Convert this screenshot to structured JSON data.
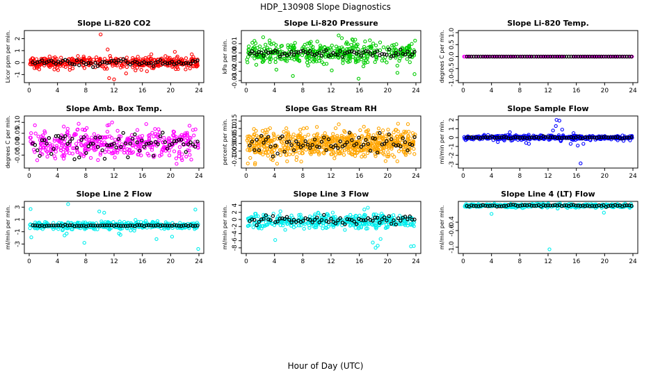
{
  "figure": {
    "title": "HDP_130908  Slope Diagnostics",
    "xlabel": "Hour of Day (UTC)"
  },
  "colors": {
    "red": "#ff0000",
    "green": "#00cc00",
    "magenta": "#ff00ff",
    "orange": "#ffa500",
    "blue": "#0000ff",
    "cyan": "#00eeee",
    "black": "#000000"
  },
  "chart_data": [
    {
      "type": "scatter",
      "title": "Slope Li-820 CO2",
      "ylabel": "Licor ppm per min.",
      "xlim": [
        0,
        24
      ],
      "ylim": [
        -1.5,
        2.5
      ],
      "xticks": [
        0,
        4,
        8,
        12,
        16,
        20,
        24
      ],
      "yticks": [
        -1,
        0,
        1,
        2
      ],
      "color": "red",
      "noise": {
        "mean": 0.0,
        "sd": 0.25,
        "n": 420,
        "min": -1.5,
        "max": 2.4
      },
      "outliers": [
        [
          10.1,
          2.35
        ],
        [
          11.1,
          1.1
        ],
        [
          11.3,
          -1.3
        ],
        [
          12.0,
          -1.4
        ],
        [
          13.7,
          -0.9
        ],
        [
          20.6,
          0.9
        ]
      ],
      "black_mean": 0.0,
      "black_sd": 0.12
    },
    {
      "type": "scatter",
      "title": "Slope Li-820 Pressure",
      "ylabel": "kPa per min.",
      "xlim": [
        0,
        24
      ],
      "ylim": [
        -0.03,
        0.022
      ],
      "xticks": [
        0,
        4,
        8,
        12,
        16,
        20,
        24
      ],
      "yticks": [
        -0.03,
        -0.02,
        -0.01,
        0.0,
        0.01
      ],
      "ytick_labels": [
        "-0.03",
        "-0.02",
        "-0.01",
        "0.00",
        "0.01"
      ],
      "color": "green",
      "noise": {
        "mean": 0.0,
        "sd": 0.006,
        "n": 420,
        "min": -0.03,
        "max": 0.02
      },
      "outliers": [
        [
          6.6,
          -0.025
        ],
        [
          12.1,
          -0.019
        ],
        [
          15.9,
          -0.028
        ],
        [
          23.8,
          -0.023
        ],
        [
          2.4,
          0.017
        ]
      ],
      "black_mean": 0.0,
      "black_sd": 0.0025
    },
    {
      "type": "scatter",
      "title": "Slope Li-820 Temp.",
      "ylabel": "degrees C per min.",
      "xlim": [
        0,
        24
      ],
      "ylim": [
        -1.0,
        1.0
      ],
      "xticks": [
        0,
        4,
        8,
        12,
        16,
        20,
        24
      ],
      "yticks": [
        -1.0,
        -0.5,
        0.0,
        0.5,
        1.0
      ],
      "ytick_labels": [
        "-1.0",
        "-0.5",
        "0.0",
        "0.5",
        "1.0"
      ],
      "color": "magenta",
      "noise": {
        "mean": 0.0,
        "sd": 0.0,
        "n": 160,
        "min": 0.0,
        "max": 0.0
      },
      "outliers": [],
      "black_mean": 0.0,
      "black_sd": 0.0
    },
    {
      "type": "scatter",
      "title": "Slope Amb. Box Temp.",
      "ylabel": "degrees C per min.",
      "xlim": [
        0,
        24
      ],
      "ylim": [
        -0.1,
        0.12
      ],
      "xticks": [
        0,
        4,
        8,
        12,
        16,
        20,
        24
      ],
      "yticks": [
        -0.05,
        0.0,
        0.05,
        0.1
      ],
      "ytick_labels": [
        "-0.05",
        "0.00",
        "0.05",
        "0.10"
      ],
      "color": "magenta",
      "noise": {
        "mean": 0.0,
        "sd": 0.035,
        "n": 420,
        "min": -0.09,
        "max": 0.1
      },
      "outliers": [],
      "black_mean": 0.0,
      "black_sd": 0.03
    },
    {
      "type": "scatter",
      "title": "Slope Gas Stream RH",
      "ylabel": "percent per min.",
      "xlim": [
        0,
        24
      ],
      "ylim": [
        -0.15,
        0.17
      ],
      "xticks": [
        0,
        4,
        8,
        12,
        16,
        20,
        24
      ],
      "yticks": [
        -0.1,
        -0.05,
        0.0,
        0.05,
        0.1,
        0.15
      ],
      "ytick_labels": [
        "-0.10",
        "-0.05",
        "0.00",
        "0.05",
        "0.10",
        "0.15"
      ],
      "color": "orange",
      "noise": {
        "mean": 0.0,
        "sd": 0.045,
        "n": 700,
        "min": -0.14,
        "max": 0.16
      },
      "outliers": [],
      "black_mean": 0.0,
      "black_sd": 0.035
    },
    {
      "type": "scatter",
      "title": "Slope Sample Flow",
      "ylabel": "ml/min per min.",
      "xlim": [
        0,
        24
      ],
      "ylim": [
        -3.2,
        2.2
      ],
      "xticks": [
        0,
        4,
        8,
        12,
        16,
        20,
        24
      ],
      "yticks": [
        -3,
        -2,
        -1,
        0,
        1,
        2
      ],
      "color": "blue",
      "noise": {
        "mean": 0.0,
        "sd": 0.12,
        "n": 420,
        "min": -0.8,
        "max": 0.8
      },
      "outliers": [
        [
          13.2,
          2.0
        ],
        [
          13.6,
          1.9
        ],
        [
          13.1,
          1.3
        ],
        [
          14.0,
          0.9
        ],
        [
          15.6,
          0.5
        ],
        [
          16.2,
          -0.9
        ],
        [
          16.6,
          -2.9
        ],
        [
          4.9,
          -0.5
        ],
        [
          8.9,
          -0.6
        ],
        [
          9.3,
          -0.7
        ],
        [
          15.2,
          -0.7
        ],
        [
          17.0,
          -0.7
        ],
        [
          12.7,
          0.8
        ],
        [
          13.8,
          -0.4
        ],
        [
          6.6,
          0.6
        ]
      ],
      "black_mean": 0.0,
      "black_sd": 0.05
    },
    {
      "type": "scatter",
      "title": "Slope Line 2 Flow",
      "ylabel": "ml/min per min.",
      "xlim": [
        0,
        24
      ],
      "ylim": [
        -4.2,
        3.6
      ],
      "xticks": [
        0,
        4,
        8,
        12,
        16,
        20,
        24
      ],
      "yticks": [
        -3,
        -1,
        1,
        3
      ],
      "color": "cyan",
      "noise": {
        "mean": 0.0,
        "sd": 0.3,
        "n": 420,
        "min": -1.5,
        "max": 1.5
      },
      "outliers": [
        [
          0.2,
          2.7
        ],
        [
          0.3,
          -1.9
        ],
        [
          5.5,
          3.5
        ],
        [
          5.3,
          -1.3
        ],
        [
          5.0,
          -1.6
        ],
        [
          7.8,
          -2.8
        ],
        [
          12.9,
          -1.5
        ],
        [
          12.7,
          -1.3
        ],
        [
          18.0,
          -2.2
        ],
        [
          20.2,
          -1.8
        ],
        [
          23.5,
          2.6
        ],
        [
          23.9,
          -3.8
        ],
        [
          9.9,
          2.3
        ],
        [
          10.6,
          2.1
        ]
      ],
      "black_mean": 0.0,
      "black_sd": 0.05
    },
    {
      "type": "scatter",
      "title": "Slope Line 3 Flow",
      "ylabel": "ml/min per min.",
      "xlim": [
        0,
        24
      ],
      "ylim": [
        -9.0,
        4.5
      ],
      "xticks": [
        0,
        4,
        8,
        12,
        16,
        20,
        24
      ],
      "yticks": [
        -8,
        -6,
        -4,
        -2,
        0,
        2,
        4
      ],
      "color": "cyan",
      "noise": {
        "mean": -0.5,
        "sd": 1.0,
        "n": 420,
        "min": -4.0,
        "max": 3.0
      },
      "outliers": [
        [
          4.1,
          -5.8
        ],
        [
          17.9,
          -6.5
        ],
        [
          18.3,
          -8.0
        ],
        [
          18.6,
          -7.4
        ],
        [
          19.0,
          -5.5
        ],
        [
          23.3,
          -7.6
        ],
        [
          23.7,
          -7.5
        ],
        [
          17.2,
          3.3
        ],
        [
          16.7,
          2.8
        ]
      ],
      "black_mean": 0.0,
      "black_sd": 0.6
    },
    {
      "type": "scatter",
      "title": "Slope Line 4 (LT) Flow",
      "ylabel": "ml/min per min.",
      "xlim": [
        0,
        24
      ],
      "ylim": [
        -1.1,
        0.05
      ],
      "xticks": [
        0,
        4,
        8,
        12,
        16,
        20,
        24
      ],
      "yticks": [
        -1.0,
        -0.6,
        -0.4
      ],
      "ytick_labels": [
        "-1.0",
        "-0.6",
        "-0.4"
      ],
      "color": "cyan",
      "noise": {
        "mean": 0.0,
        "sd": 0.02,
        "n": 420,
        "min": -0.07,
        "max": 0.05
      },
      "outliers": [
        [
          4.0,
          -0.2
        ],
        [
          12.2,
          -1.05
        ],
        [
          19.9,
          -0.17
        ],
        [
          8.4,
          -0.06
        ],
        [
          11.9,
          -0.05
        ]
      ],
      "black_mean": -0.005,
      "black_sd": 0.012
    }
  ]
}
